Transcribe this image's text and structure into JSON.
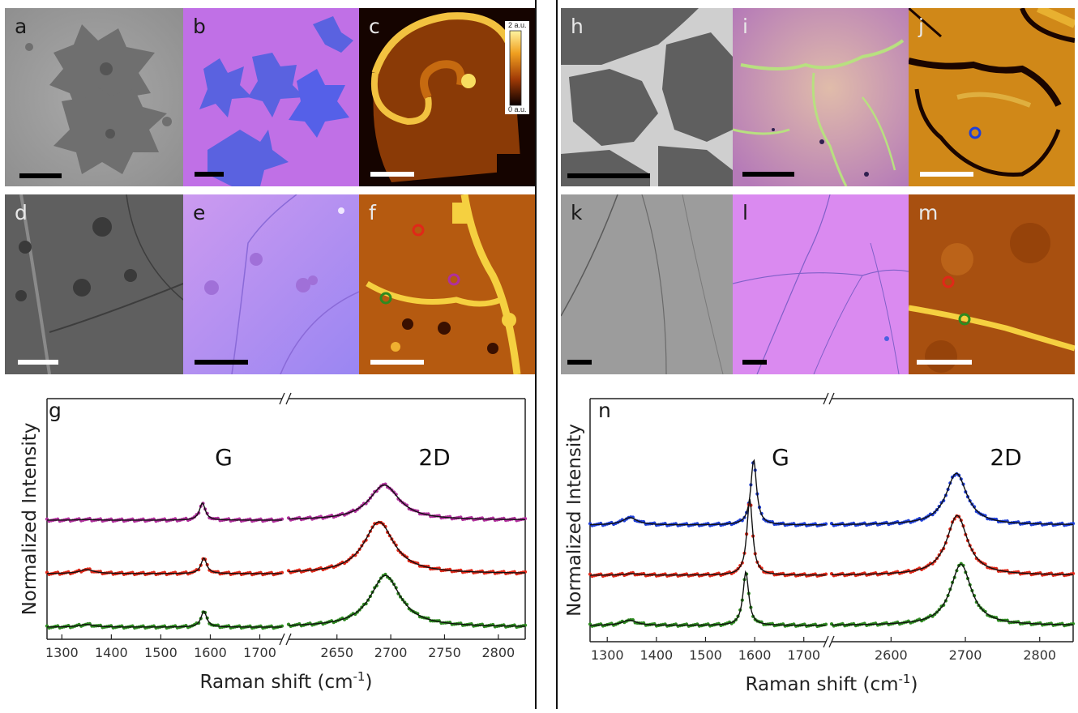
{
  "panels": {
    "a": "a",
    "b": "b",
    "c": "c",
    "d": "d",
    "e": "e",
    "f": "f",
    "g": "g",
    "h": "h",
    "i": "i",
    "j": "j",
    "k": "k",
    "l": "l",
    "m": "m",
    "n": "n"
  },
  "colorbar": {
    "max_label": "2 a.u.",
    "min_label": "0 a.u."
  },
  "colors": {
    "magenta": "#b0309c",
    "red": "#e02818",
    "green": "#2e8a20",
    "blue": "#1f3fd8",
    "fit": "#111111"
  },
  "marker_colors": [
    "red",
    "magenta",
    "green",
    "blue"
  ],
  "chart_data": [
    {
      "type": "line",
      "panel": "g",
      "xlabel": "Raman shift (cm-1)",
      "ylabel": "Normalized Intensity",
      "peak_labels": [
        "G",
        "2D"
      ],
      "axis_break": true,
      "segments": [
        {
          "xlim": [
            1270,
            1745
          ],
          "ticks": [
            1300,
            1400,
            1500,
            1600,
            1700
          ]
        },
        {
          "xlim": [
            2605,
            2825
          ],
          "ticks": [
            2650,
            2700,
            2750,
            2800
          ]
        }
      ],
      "series": [
        {
          "color": "magenta",
          "offset": 2.0,
          "D": [
            1350,
            0.02
          ],
          "G": [
            1584,
            0.52
          ],
          "2D": [
            2694,
            1.06
          ]
        },
        {
          "color": "red",
          "offset": 1.0,
          "D": [
            1350,
            0.12
          ],
          "G": [
            1587,
            0.47
          ],
          "2D": [
            2689,
            1.56
          ]
        },
        {
          "color": "green",
          "offset": 0.0,
          "D": [
            1350,
            0.08
          ],
          "G": [
            1587,
            0.48
          ],
          "2D": [
            2695,
            1.56
          ]
        }
      ]
    },
    {
      "type": "line",
      "panel": "n",
      "xlabel": "Raman shift (cm-1)",
      "ylabel": "Normalized Intensity",
      "peak_labels": [
        "G",
        "2D"
      ],
      "axis_break": true,
      "segments": [
        {
          "xlim": [
            1265,
            1745
          ],
          "ticks": [
            1300,
            1400,
            1500,
            1600,
            1700
          ]
        },
        {
          "xlim": [
            2520,
            2845
          ],
          "ticks": [
            2600,
            2700,
            2800
          ]
        }
      ],
      "series": [
        {
          "color": "blue",
          "offset": 2.0,
          "D": [
            1346,
            0.24
          ],
          "G": [
            1598,
            2.1
          ],
          "2D": [
            2688,
            1.66
          ]
        },
        {
          "color": "red",
          "offset": 1.0,
          "D": [
            1350,
            0.05
          ],
          "G": [
            1590,
            2.45
          ],
          "2D": [
            2689,
            1.92
          ]
        },
        {
          "color": "green",
          "offset": 0.0,
          "D": [
            1345,
            0.17
          ],
          "G": [
            1582,
            1.73
          ],
          "2D": [
            2694,
            1.97
          ]
        }
      ]
    }
  ]
}
